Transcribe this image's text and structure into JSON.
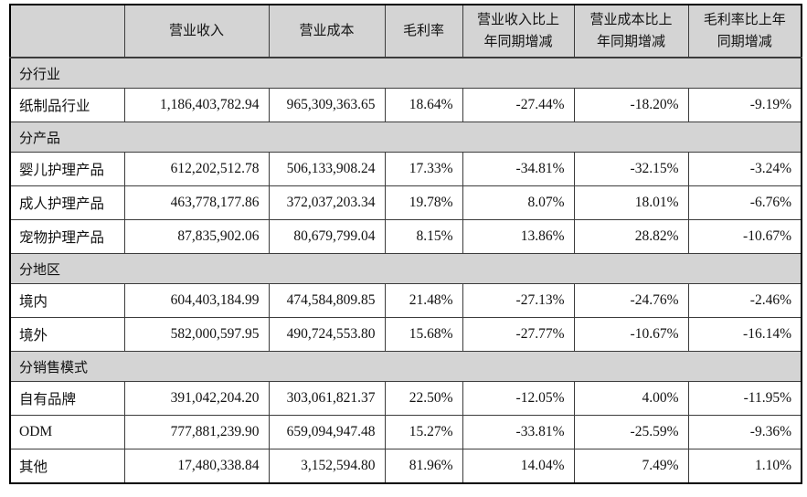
{
  "colors": {
    "header_bg": "#d4d4d4",
    "border": "#3c3c3c",
    "outer_border": "#000000",
    "text": "#111111"
  },
  "table": {
    "headers": [
      "",
      "营业收入",
      "营业成本",
      "毛利率",
      "营业收入比上\n年同期增减",
      "营业成本比上\n年同期增减",
      "毛利率比上年\n同期增减"
    ],
    "rows": [
      {
        "type": "section",
        "cells": [
          "分行业"
        ]
      },
      {
        "type": "data",
        "cells": [
          "纸制品行业",
          "1,186,403,782.94",
          "965,309,363.65",
          "18.64%",
          "-27.44%",
          "-18.20%",
          "-9.19%"
        ]
      },
      {
        "type": "section",
        "cells": [
          "分产品"
        ]
      },
      {
        "type": "data",
        "cells": [
          "婴儿护理产品",
          "612,202,512.78",
          "506,133,908.24",
          "17.33%",
          "-34.81%",
          "-32.15%",
          "-3.24%"
        ]
      },
      {
        "type": "data",
        "cells": [
          "成人护理产品",
          "463,778,177.86",
          "372,037,203.34",
          "19.78%",
          "8.07%",
          "18.01%",
          "-6.76%"
        ]
      },
      {
        "type": "data",
        "cells": [
          "宠物护理产品",
          "87,835,902.06",
          "80,679,799.04",
          "8.15%",
          "13.86%",
          "28.82%",
          "-10.67%"
        ]
      },
      {
        "type": "section",
        "cells": [
          "分地区"
        ]
      },
      {
        "type": "data",
        "cells": [
          "境内",
          "604,403,184.99",
          "474,584,809.85",
          "21.48%",
          "-27.13%",
          "-24.76%",
          "-2.46%"
        ]
      },
      {
        "type": "data",
        "cells": [
          "境外",
          "582,000,597.95",
          "490,724,553.80",
          "15.68%",
          "-27.77%",
          "-10.67%",
          "-16.14%"
        ]
      },
      {
        "type": "section",
        "cells": [
          "分销售模式"
        ]
      },
      {
        "type": "data",
        "cells": [
          "自有品牌",
          "391,042,204.20",
          "303,061,821.37",
          "22.50%",
          "-12.05%",
          "4.00%",
          "-11.95%"
        ]
      },
      {
        "type": "data",
        "cells": [
          "ODM",
          "777,881,239.90",
          "659,094,947.48",
          "15.27%",
          "-33.81%",
          "-25.59%",
          "-9.36%"
        ]
      },
      {
        "type": "data",
        "cells": [
          "其他",
          "17,480,338.84",
          "3,152,594.80",
          "81.96%",
          "14.04%",
          "7.49%",
          "1.10%"
        ]
      }
    ]
  }
}
